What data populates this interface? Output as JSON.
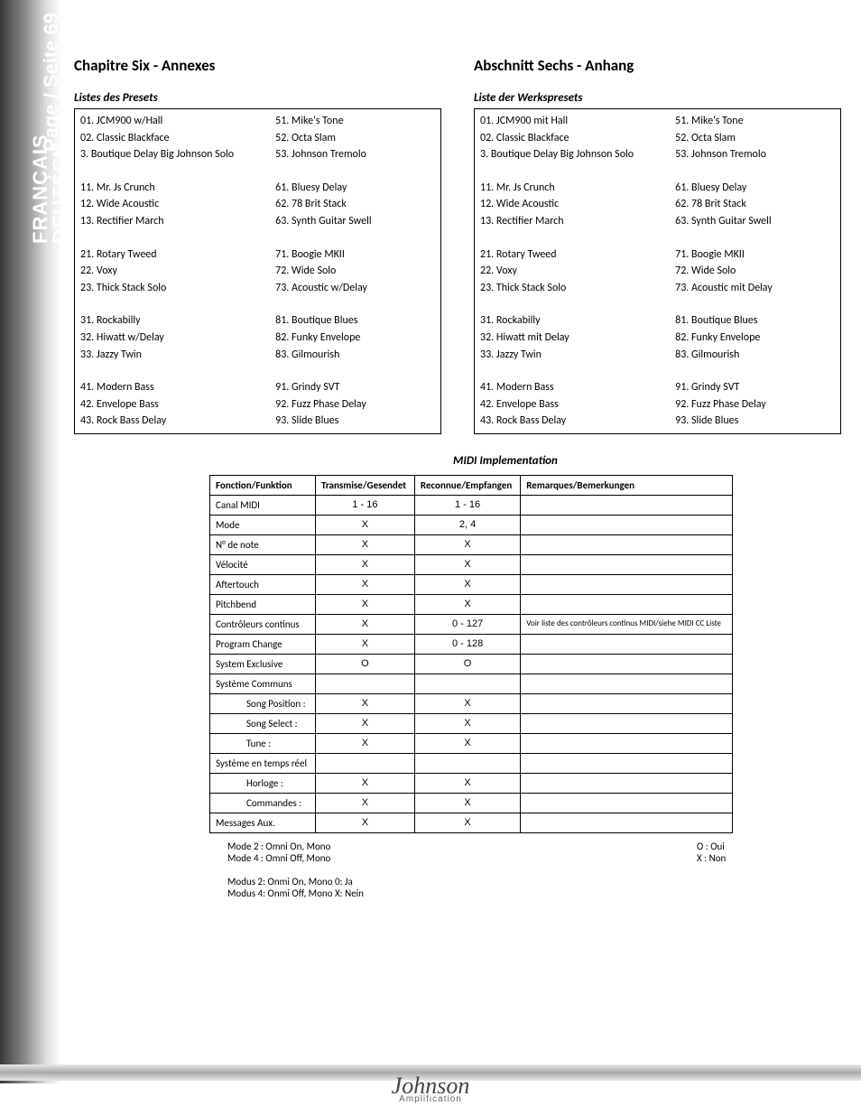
{
  "sidebar": {
    "lang1": "FRANÇAIS",
    "lang2": "DEUTSCH",
    "page_label": "Page / Seite 69"
  },
  "left": {
    "chapter": "Chapitre Six - Annexes",
    "subhead": "Listes des Presets",
    "rows": [
      [
        "01. JCM900 w/Hall",
        "51. Mike's Tone"
      ],
      [
        "02. Classic Blackface",
        "52. Octa Slam"
      ],
      [
        "3. Boutique Delay Big Johnson Solo",
        "53. Johnson Tremolo"
      ],
      "gap",
      [
        "11.  Mr. Js Crunch",
        "61. Bluesy Delay"
      ],
      [
        "12. Wide Acoustic",
        "62. 78 Brit Stack"
      ],
      [
        "13. Rectifier March",
        "63. Synth Guitar Swell"
      ],
      "gap",
      [
        "21. Rotary Tweed",
        "71. Boogie MKII"
      ],
      [
        "22. Voxy",
        "72. Wide Solo"
      ],
      [
        "23. Thick Stack Solo",
        "73. Acoustic w/Delay"
      ],
      "gap",
      [
        "31. Rockabilly",
        "81. Boutique Blues"
      ],
      [
        "32. Hiwatt w/Delay",
        "82. Funky Envelope"
      ],
      [
        "33. Jazzy Twin",
        "83. Gilmourish"
      ],
      "gap",
      [
        "41. Modern Bass",
        "91. Grindy SVT"
      ],
      [
        "42. Envelope Bass",
        "92. Fuzz Phase Delay"
      ],
      [
        "43. Rock Bass Delay",
        "93. Slide Blues"
      ]
    ]
  },
  "right": {
    "chapter": "Abschnitt Sechs - Anhang",
    "subhead": "Liste der Werkspresets",
    "rows": [
      [
        "01. JCM900 mit Hall",
        "51. Mike's Tone"
      ],
      [
        "02. Classic Blackface",
        "52. Octa Slam"
      ],
      [
        "3. Boutique Delay Big Johnson Solo",
        "53. Johnson Tremolo"
      ],
      "gap",
      [
        "11.  Mr. Js Crunch",
        "61. Bluesy Delay"
      ],
      [
        "12. Wide Acoustic",
        "62. 78 Brit Stack"
      ],
      [
        "13. Rectifier March",
        "63. Synth Guitar Swell"
      ],
      "gap",
      [
        "21. Rotary Tweed",
        "71. Boogie MKII"
      ],
      [
        "22. Voxy",
        "72. Wide Solo"
      ],
      [
        "23. Thick Stack Solo",
        "73. Acoustic mit Delay"
      ],
      "gap",
      [
        "31. Rockabilly",
        "81. Boutique Blues"
      ],
      [
        "32. Hiwatt mit Delay",
        "82. Funky Envelope"
      ],
      [
        "33. Jazzy Twin",
        "83. Gilmourish"
      ],
      "gap",
      [
        "41. Modern Bass",
        "91. Grindy SVT"
      ],
      [
        "42. Envelope Bass",
        "92. Fuzz Phase Delay"
      ],
      [
        "43. Rock Bass Delay",
        "93. Slide Blues"
      ]
    ]
  },
  "midi": {
    "title": "MIDI Implementation",
    "headers": [
      "Fonction/Funktion",
      "Transmise/Gesendet",
      "Reconnue/Empfangen",
      "Remarques/Bemerkungen"
    ],
    "rows": [
      {
        "f": "Canal MIDI",
        "t": "1 - 16",
        "r": "1 - 16",
        "n": ""
      },
      {
        "f": "Mode",
        "t": "X",
        "r": "2, 4",
        "n": ""
      },
      {
        "f": "N° de note",
        "t": "X",
        "r": "X",
        "n": ""
      },
      {
        "f": "Vélocité",
        "t": "X",
        "r": "X",
        "n": ""
      },
      {
        "f": "Aftertouch",
        "t": "X",
        "r": "X",
        "n": ""
      },
      {
        "f": "Pitchbend",
        "t": "X",
        "r": "X",
        "n": ""
      },
      {
        "f": "Contrôleurs continus",
        "t": "X",
        "r": "0 - 127",
        "n": "Voir liste des contrôleurs continus MIDI/siehe MIDI CC Liste"
      },
      {
        "f": "Program Change",
        "t": "X",
        "r": "0 - 128",
        "n": ""
      },
      {
        "f": "System Exclusive",
        "t": "O",
        "r": "O",
        "n": ""
      },
      {
        "f": "Système Communs",
        "t": "",
        "r": "",
        "n": ""
      },
      {
        "f": "Song Position :",
        "t": "X",
        "r": "X",
        "n": "",
        "indent": true
      },
      {
        "f": "Song Select :",
        "t": "X",
        "r": "X",
        "n": "",
        "indent": true
      },
      {
        "f": "Tune :",
        "t": "X",
        "r": "X",
        "n": "",
        "indent": true
      },
      {
        "f": "Système en temps réel",
        "t": "",
        "r": "",
        "n": ""
      },
      {
        "f": "Horloge :",
        "t": "X",
        "r": "X",
        "n": "",
        "indent": true
      },
      {
        "f": "Commandes :",
        "t": "X",
        "r": "X",
        "n": "",
        "indent": true
      },
      {
        "f": "Messages Aux.",
        "t": "X",
        "r": "X",
        "n": ""
      }
    ],
    "foot_left": [
      "Mode 2 : Omni On, Mono",
      "Mode 4 : Omni Off, Mono",
      "",
      "Modus 2: Onmi On, Mono 0: Ja",
      "Modus 4: Onmi Off, Mono X: Nein"
    ],
    "foot_right": [
      "O : Oui",
      "X : Non"
    ]
  },
  "footer": {
    "logo": "Johnson",
    "sub": "Amplification"
  }
}
